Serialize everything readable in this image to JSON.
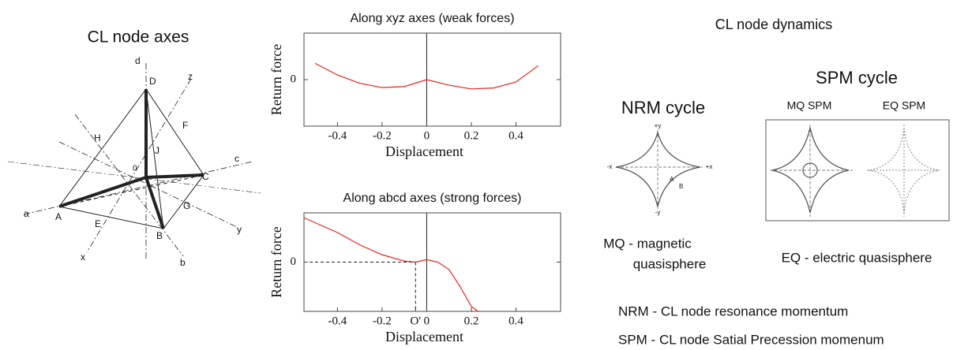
{
  "left_diagram": {
    "title": "CL node axes",
    "labels": [
      "d",
      "D",
      "z",
      "H",
      "F",
      "J",
      "0",
      "C",
      "c",
      "a",
      "A",
      "E",
      "G",
      "B",
      "x",
      "b",
      "y"
    ]
  },
  "chart_data": [
    {
      "type": "line",
      "title": "Along xyz axes (weak forces)",
      "x_label": "Displacement",
      "y_label": "Return force",
      "xlim": [
        -0.55,
        0.6
      ],
      "ylim": [
        -1,
        1
      ],
      "xticks": [
        -0.4,
        -0.2,
        0,
        0.2,
        0.4
      ],
      "yticks": [
        0
      ],
      "series": [
        {
          "color": "#e8221e",
          "x": [
            -0.5,
            -0.4,
            -0.3,
            -0.2,
            -0.1,
            0,
            0.1,
            0.2,
            0.3,
            0.4,
            0.5
          ],
          "values": [
            0.35,
            0.1,
            -0.08,
            -0.17,
            -0.15,
            0,
            -0.12,
            -0.2,
            -0.18,
            -0.05,
            0.3
          ]
        }
      ]
    },
    {
      "type": "line",
      "title": "Along abcd axes (strong forces)",
      "x_label": "Displacement",
      "y_label": "Return force",
      "xlim": [
        -0.55,
        0.6
      ],
      "ylim": [
        -1,
        1
      ],
      "xticks": [
        -0.4,
        -0.2,
        {
          "value": -0.05,
          "label": "O'"
        },
        0,
        0.2,
        0.4
      ],
      "yticks": [
        0
      ],
      "series": [
        {
          "color": "#e8221e",
          "x": [
            -0.55,
            -0.4,
            -0.3,
            -0.2,
            -0.1,
            -0.05,
            0,
            0.05,
            0.1,
            0.15,
            0.2,
            0.23
          ],
          "values": [
            0.9,
            0.6,
            0.35,
            0.15,
            0.02,
            0,
            0.05,
            0,
            -0.15,
            -0.5,
            -0.9,
            -1
          ]
        }
      ]
    }
  ],
  "right_diagram": {
    "title": "CL node dynamics",
    "nrm_title": "NRM cycle",
    "spm_title": "SPM cycle",
    "mq_spm": "MQ SPM",
    "eq_spm": "EQ SPM",
    "axis_labels": [
      "+y",
      "-x",
      "+x",
      "-y",
      "A",
      "B"
    ],
    "mq_caption": [
      "MQ - magnetic",
      "quasisphere"
    ],
    "eq_caption": "EQ - electric quasisphere",
    "legend": [
      "NRM - CL node resonance momentum",
      "SPM - CL node Satial Precession momenum"
    ]
  }
}
